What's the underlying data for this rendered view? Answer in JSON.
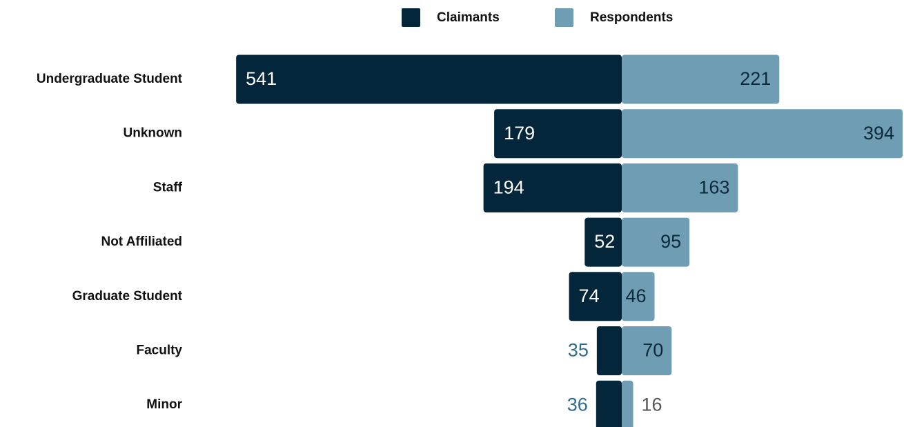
{
  "chart_data": {
    "type": "bar",
    "orientation": "diverging",
    "categories": [
      "Undergraduate Student",
      "Unknown",
      "Staff",
      "Not Affiliated",
      "Graduate Student",
      "Faculty",
      "Minor"
    ],
    "series": [
      {
        "name": "Claimants",
        "color": "#03263a",
        "values": [
          541,
          179,
          194,
          52,
          74,
          35,
          36
        ]
      },
      {
        "name": "Respondents",
        "color": "#6f9db3",
        "values": [
          221,
          394,
          163,
          95,
          46,
          70,
          16
        ]
      }
    ],
    "legend": "top"
  }
}
